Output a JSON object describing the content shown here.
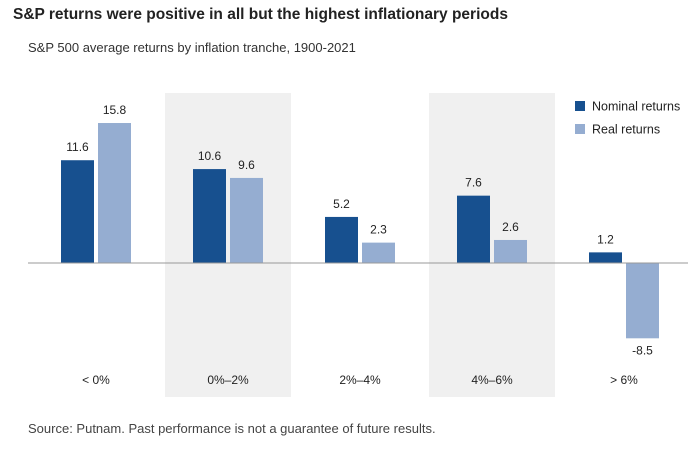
{
  "header": {
    "title": "S&P returns were positive in all but the highest inflationary periods",
    "subtitle": "S&P 500 average returns by inflation tranche, 1900-2021"
  },
  "footer": {
    "source": "Source: Putnam. Past performance is not a guarantee of future results."
  },
  "colors": {
    "nominal": "#17508f",
    "real": "#95add1",
    "band": "#f0f0f0",
    "baseline": "#999999"
  },
  "chart_data": {
    "type": "bar",
    "categories": [
      "< 0%",
      "0%–2%",
      "2%–4%",
      "4%–6%",
      "> 6%"
    ],
    "series": [
      {
        "name": "Nominal returns",
        "values": [
          11.6,
          10.6,
          5.2,
          7.6,
          1.2
        ]
      },
      {
        "name": "Real returns",
        "values": [
          15.8,
          9.6,
          2.3,
          2.6,
          -8.5
        ]
      }
    ],
    "data_labels": [
      [
        "11.6",
        "10.6",
        "5.2",
        "7.6",
        "1.2"
      ],
      [
        "15.8",
        "9.6",
        "2.3",
        "2.6",
        "-8.5"
      ]
    ],
    "shaded_categories": [
      1,
      3
    ],
    "legend_position": "top-right",
    "grid": false
  }
}
